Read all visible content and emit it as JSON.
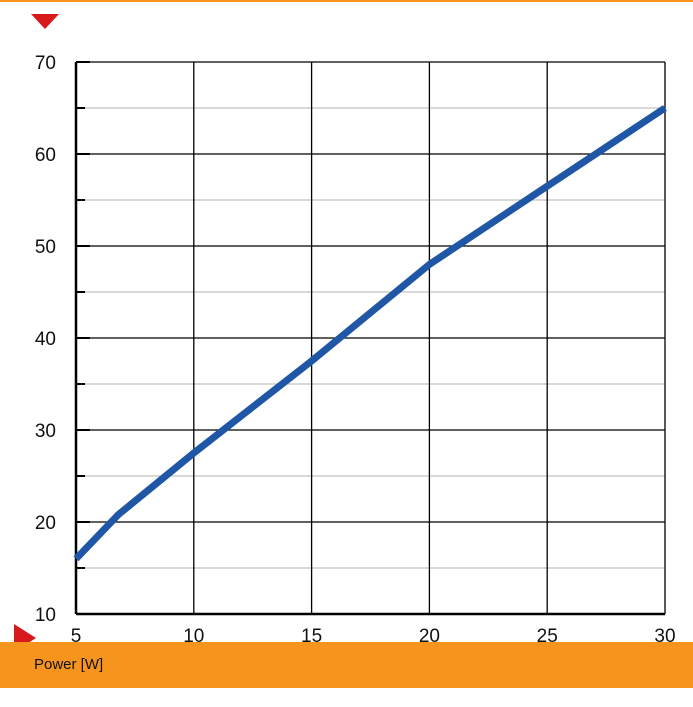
{
  "colors": {
    "accent": "#f7941d",
    "marker": "#d7191c",
    "line": "#1f56a6",
    "major_grid": "#000000",
    "minor_grid": "#b3b3b3"
  },
  "footer": {
    "label": "Power [W]"
  },
  "chart_data": {
    "type": "line",
    "xlim": [
      5,
      30
    ],
    "ylim": [
      10,
      70
    ],
    "x_ticks": [
      5,
      10,
      15,
      20,
      25,
      30
    ],
    "y_ticks": [
      10,
      20,
      30,
      40,
      50,
      60,
      70
    ],
    "y_minor_ticks": [
      15,
      25,
      35,
      45,
      55,
      65
    ],
    "grid": true,
    "series": [
      {
        "x": [
          5,
          6.8,
          10,
          15,
          20,
          25,
          30
        ],
        "y": [
          16,
          20.8,
          27.5,
          37.5,
          48,
          56.5,
          65
        ]
      }
    ]
  }
}
